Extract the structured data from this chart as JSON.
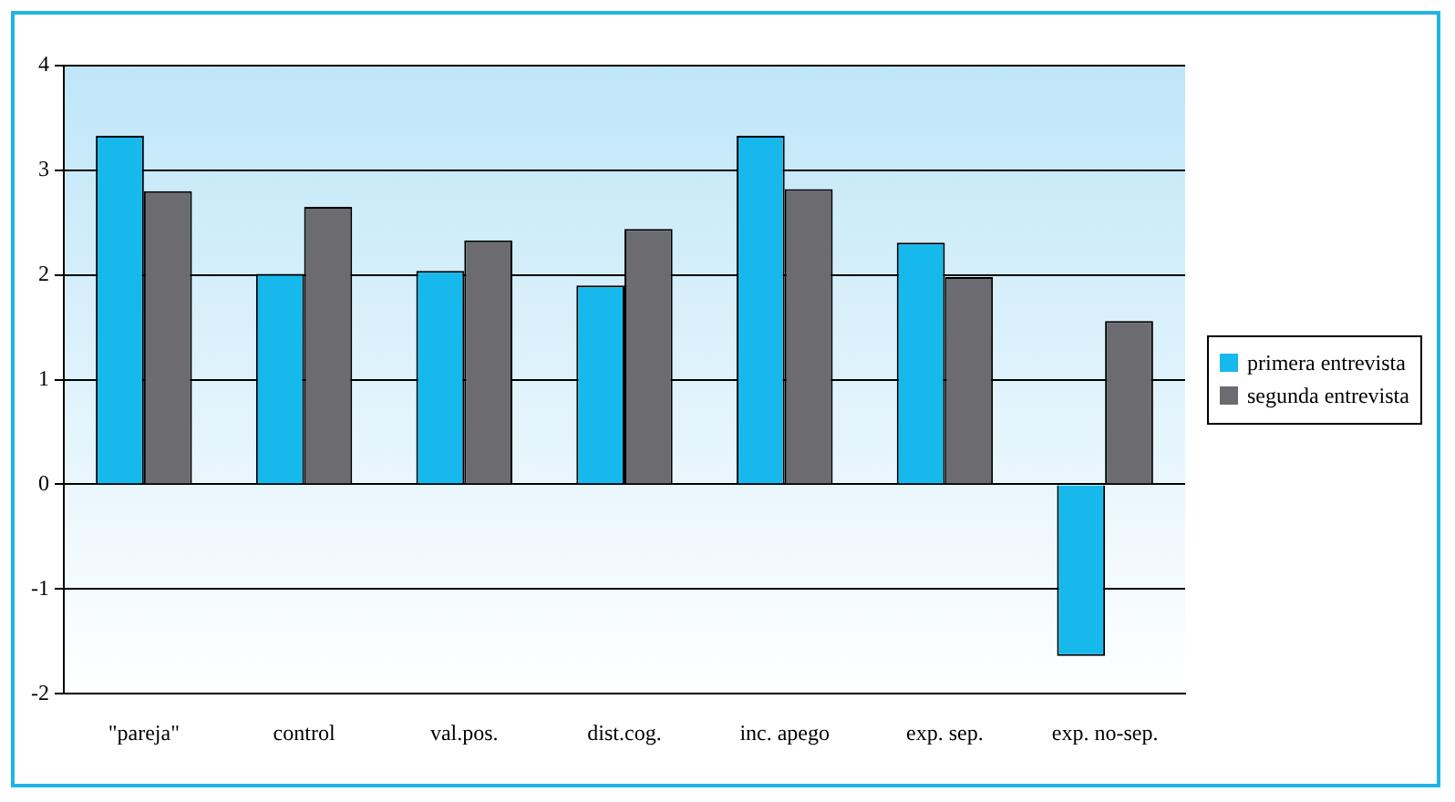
{
  "chart_data": {
    "type": "bar",
    "categories": [
      "\"pareja\"",
      "control",
      "val.pos.",
      "dist.cog.",
      "inc. apego",
      "exp. sep.",
      "exp. no-sep."
    ],
    "series": [
      {
        "name": "primera entrevista",
        "color": "#17b9ec",
        "values": [
          3.33,
          2.01,
          2.04,
          1.9,
          3.33,
          2.31,
          -1.64
        ]
      },
      {
        "name": "segunda entrevista",
        "color": "#6b6b70",
        "values": [
          2.8,
          2.65,
          2.33,
          2.44,
          2.82,
          1.98,
          1.56
        ]
      }
    ],
    "ylim": [
      -2,
      4
    ],
    "yticks": [
      -2,
      -1,
      0,
      1,
      2,
      3,
      4
    ],
    "grid": "y",
    "legend": "right"
  }
}
